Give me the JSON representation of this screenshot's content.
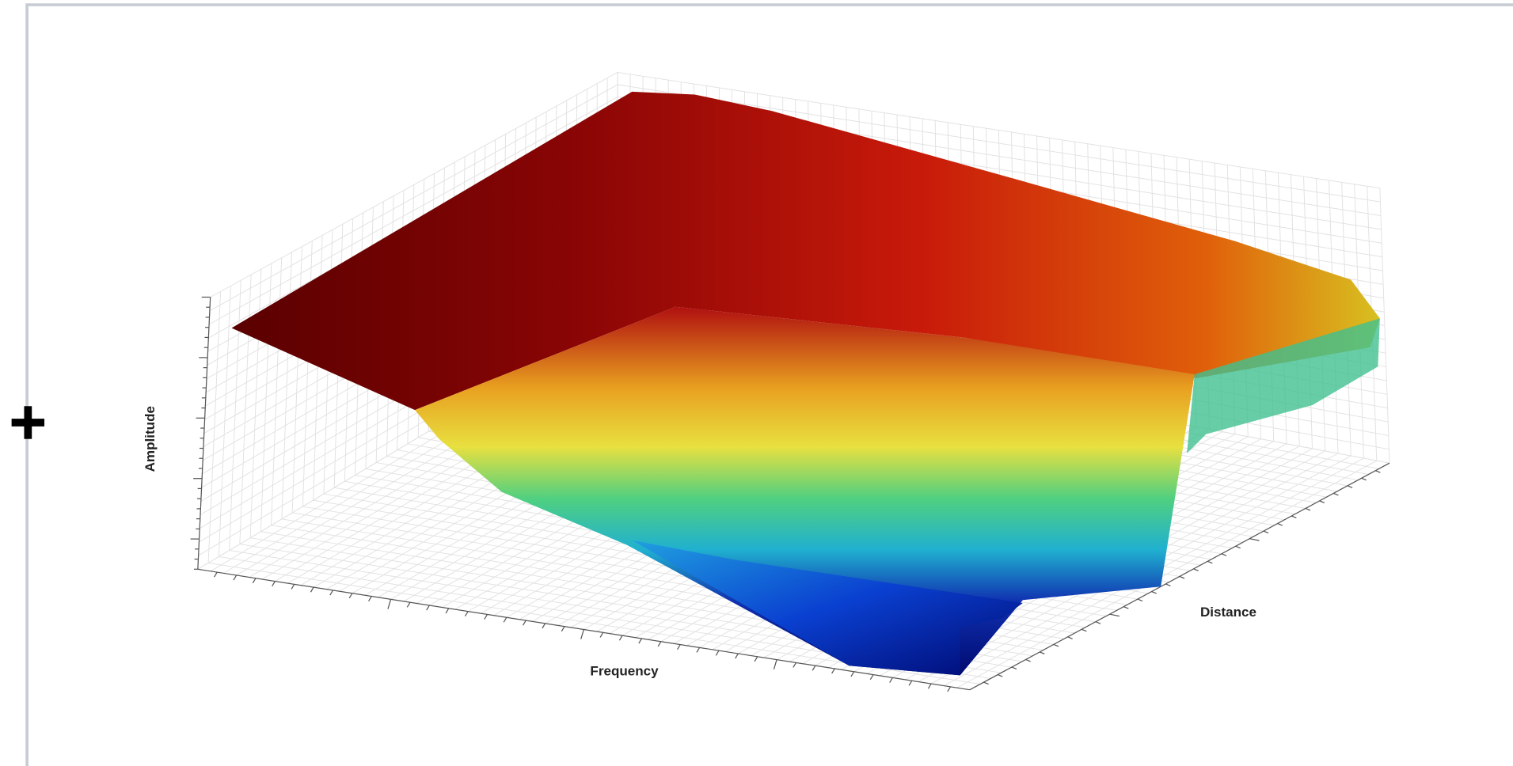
{
  "chart_data": {
    "type": "surface",
    "x_label": "Frequency",
    "y_label": "Distance",
    "z_label": "Amplitude"
  }
}
